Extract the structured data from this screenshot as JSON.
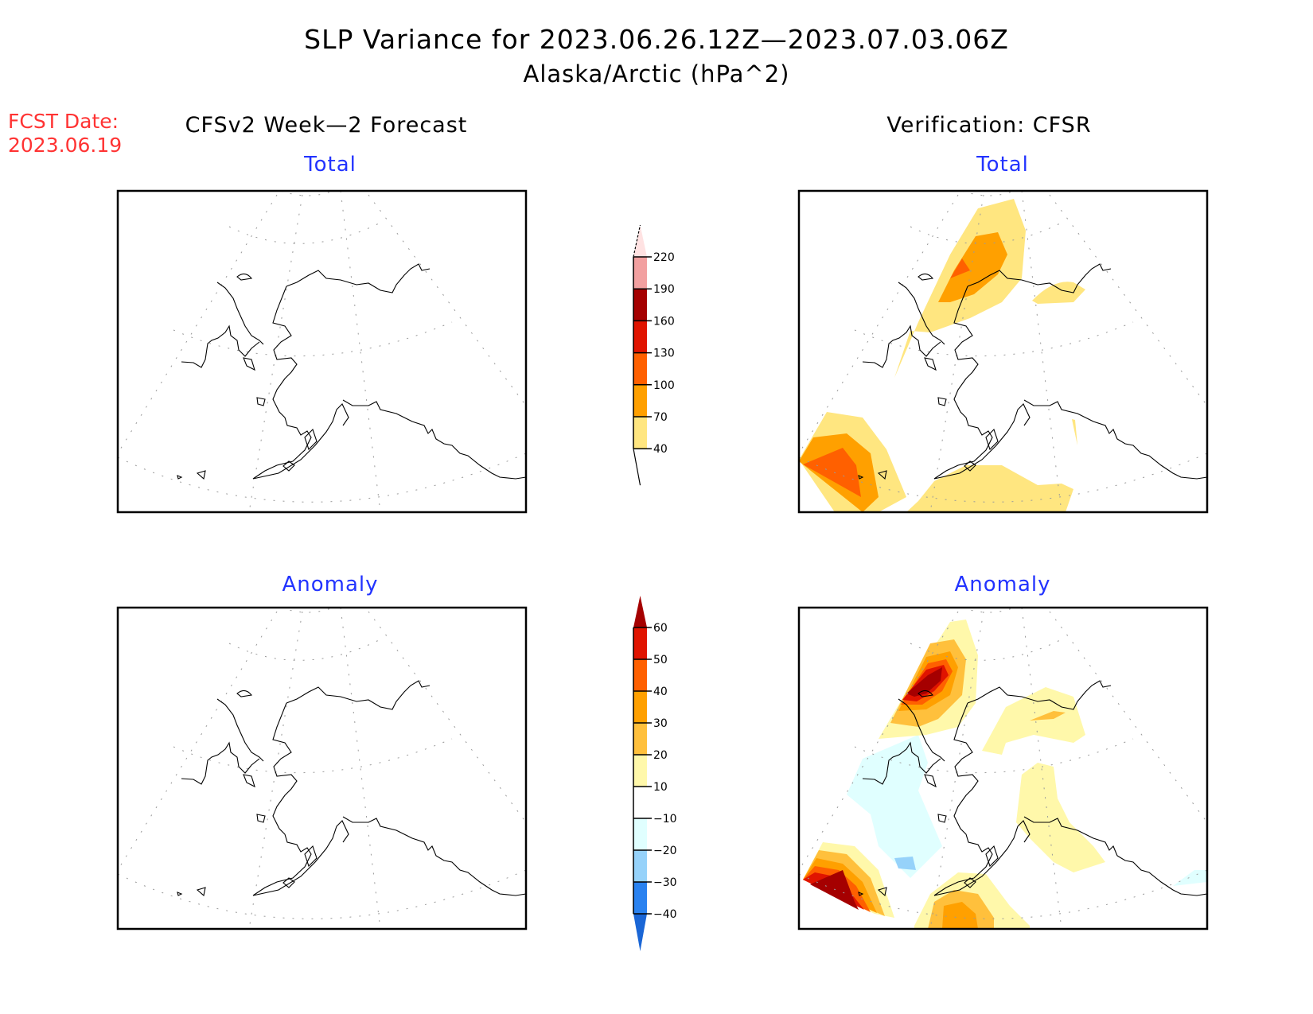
{
  "header": {
    "title": "SLP Variance for 2023.06.26.12Z—2023.07.03.06Z",
    "subtitle": "Alaska/Arctic (hPa^2)",
    "fcst_label": "FCST Date:",
    "fcst_date": "2023.06.19"
  },
  "columns": {
    "left": "CFSv2 Week—2 Forecast",
    "right": "Verification: CFSR"
  },
  "panel_titles": {
    "top_left": "Total",
    "top_right": "Total",
    "bottom_left": "Anomaly",
    "bottom_right": "Anomaly"
  },
  "colors": {
    "title_red": "#ff3333",
    "panel_blue": "#2233ff"
  },
  "chart_data": [
    {
      "type": "heatmap",
      "name": "forecast-total",
      "title": "Total",
      "column": "CFSv2 Week-2 Forecast",
      "region": "Alaska/Arctic",
      "units": "hPa^2",
      "filled_regions": []
    },
    {
      "type": "heatmap",
      "name": "verification-total",
      "title": "Total",
      "column": "Verification: CFSR",
      "region": "Alaska/Arctic",
      "units": "hPa^2",
      "filled_regions": [
        {
          "location": "Chukchi Sea / Bering Strait (north-west)",
          "range": [
            40,
            130
          ],
          "peak_band": "100-130"
        },
        {
          "location": "Beaufort coast (north-east)",
          "range": [
            40,
            70
          ]
        },
        {
          "location": "Western Bering Sea (south-west corner)",
          "range": [
            40,
            130
          ],
          "peak_band": "100-130"
        },
        {
          "location": "Gulf of Alaska (south)",
          "range": [
            40,
            70
          ]
        }
      ]
    },
    {
      "type": "heatmap",
      "name": "forecast-anomaly",
      "title": "Anomaly",
      "column": "CFSv2 Week-2 Forecast",
      "region": "Alaska/Arctic",
      "units": "hPa^2",
      "filled_regions": []
    },
    {
      "type": "heatmap",
      "name": "verification-anomaly",
      "title": "Anomaly",
      "column": "Verification: CFSR",
      "region": "Alaska/Arctic",
      "units": "hPa^2",
      "filled_regions": [
        {
          "location": "Chukchi Sea / Bering Strait (north-west)",
          "range": [
            10,
            60
          ],
          "peak_band": ">60"
        },
        {
          "location": "Beaufort coast (north-east)",
          "range": [
            10,
            30
          ]
        },
        {
          "location": "Interior / south-central Alaska",
          "range": [
            10,
            20
          ]
        },
        {
          "location": "Bering Sea (west)",
          "range": [
            -30,
            -10
          ],
          "peak_band": "-30 to -20"
        },
        {
          "location": "Western Bering Sea (south-west corner)",
          "range": [
            10,
            60
          ],
          "peak_band": ">60"
        },
        {
          "location": "North Pacific (south)",
          "range": [
            10,
            40
          ],
          "peak_band": "30-40"
        }
      ]
    }
  ],
  "colorbars": {
    "total": {
      "ticks": [
        "40",
        "70",
        "100",
        "130",
        "160",
        "190",
        "220"
      ],
      "bands": [
        {
          "range": "<40",
          "color": "#ffffff"
        },
        {
          "range": "40-70",
          "color": "#ffe680"
        },
        {
          "range": "70-100",
          "color": "#ffa000"
        },
        {
          "range": "100-130",
          "color": "#ff6000"
        },
        {
          "range": "130-160",
          "color": "#e01400"
        },
        {
          "range": "160-190",
          "color": "#a50000"
        },
        {
          "range": "190-220",
          "color": "#f2a0a0"
        },
        {
          "range": ">220",
          "color": "#ffe2e2"
        }
      ]
    },
    "anomaly": {
      "ticks": [
        "−40",
        "−30",
        "−20",
        "−10",
        "10",
        "20",
        "30",
        "40",
        "50",
        "60"
      ],
      "bands": [
        {
          "range": "<-40",
          "color": "#1a66d6"
        },
        {
          "range": "-40 to -30",
          "color": "#2a82f0"
        },
        {
          "range": "-30 to -20",
          "color": "#96d2fa"
        },
        {
          "range": "-20 to -10",
          "color": "#e0ffff"
        },
        {
          "range": "-10 to 10",
          "color": "#ffffff"
        },
        {
          "range": "10-20",
          "color": "#fff8aa"
        },
        {
          "range": "20-30",
          "color": "#ffc03c"
        },
        {
          "range": "30-40",
          "color": "#ffa000"
        },
        {
          "range": "40-50",
          "color": "#ff6000"
        },
        {
          "range": "50-60",
          "color": "#e01400"
        },
        {
          "range": ">60",
          "color": "#a50000"
        }
      ]
    }
  }
}
